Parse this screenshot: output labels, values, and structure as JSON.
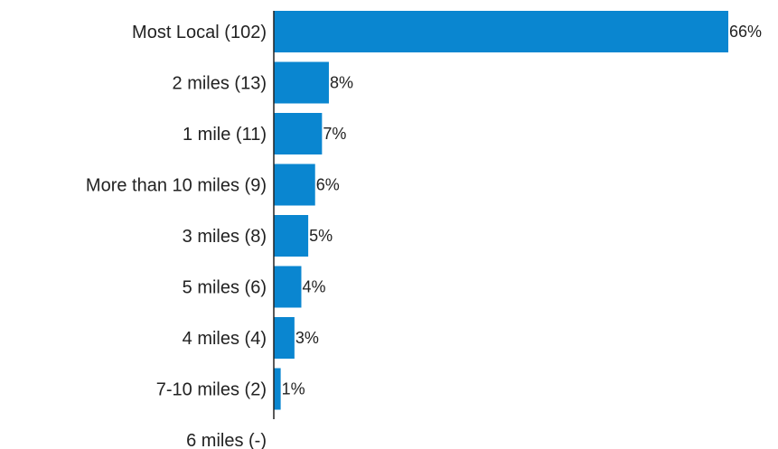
{
  "chart_data": {
    "type": "bar",
    "orientation": "horizontal",
    "categories": [
      "Most Local (102)",
      "2 miles (13)",
      "1 mile (11)",
      "More than 10 miles (9)",
      "3 miles (8)",
      "5 miles (6)",
      "4 miles (4)",
      "7-10 miles (2)",
      "6 miles (-)"
    ],
    "values": [
      66,
      8,
      7,
      6,
      5,
      4,
      3,
      1,
      0
    ],
    "data_labels": [
      "66%",
      "8%",
      "7%",
      "6%",
      "5%",
      "4%",
      "3%",
      "1%",
      ""
    ],
    "title": "",
    "xlabel": "",
    "ylabel": "",
    "xlim": [
      0,
      66
    ],
    "grid": false,
    "legend": "none",
    "bar_color": "#0a86d0"
  }
}
